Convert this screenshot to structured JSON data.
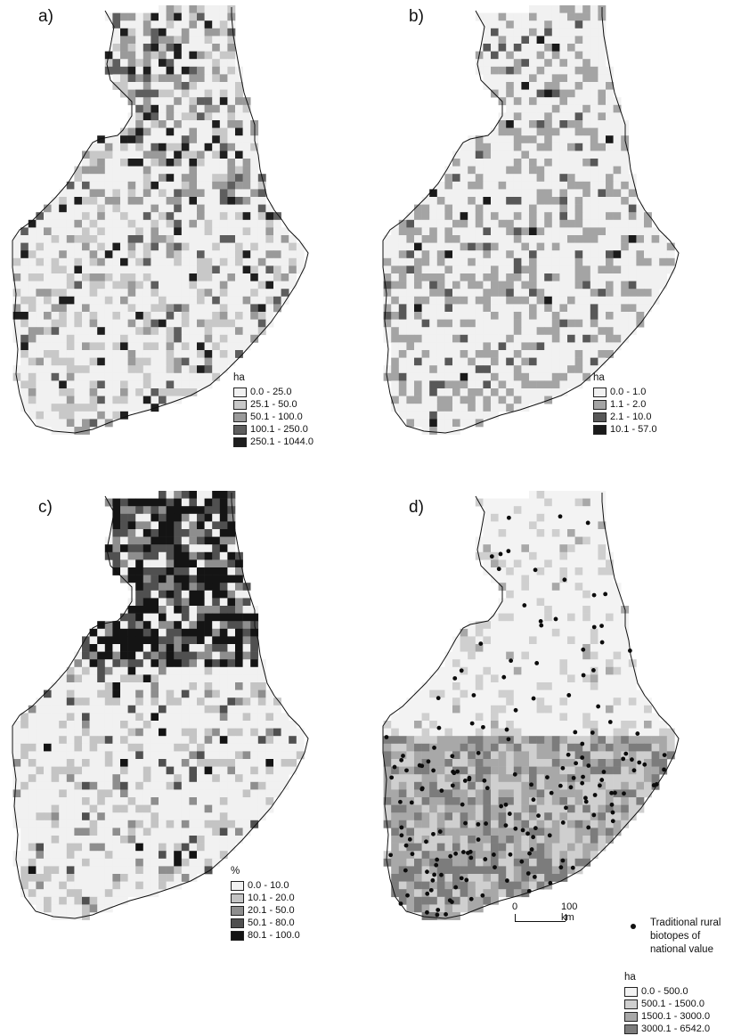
{
  "panels": [
    {
      "label": "a)",
      "legend": {
        "title": "ha",
        "classes": [
          {
            "label": "0.0 - 25.0",
            "color": "#f1f1f1"
          },
          {
            "label": "25.1 - 50.0",
            "color": "#c8c8c8"
          },
          {
            "label": "50.1 - 100.0",
            "color": "#9a9a9a"
          },
          {
            "label": "100.1 - 250.0",
            "color": "#5e5e5e"
          },
          {
            "label": "250.1 - 1044.0",
            "color": "#1e1e1e"
          }
        ]
      }
    },
    {
      "label": "b)",
      "legend": {
        "title": "ha",
        "classes": [
          {
            "label": "0.0 - 1.0",
            "color": "#f1f1f1"
          },
          {
            "label": "1.1 - 2.0",
            "color": "#a4a4a4"
          },
          {
            "label": "2.1 - 10.0",
            "color": "#585858"
          },
          {
            "label": "10.1 - 57.0",
            "color": "#1a1a1a"
          }
        ]
      }
    },
    {
      "label": "c)",
      "legend": {
        "title": "%",
        "classes": [
          {
            "label": "0.0 - 10.0",
            "color": "#f1f1f1"
          },
          {
            "label": "10.1 - 20.0",
            "color": "#c4c4c4"
          },
          {
            "label": "20.1 - 50.0",
            "color": "#8e8e8e"
          },
          {
            "label": "50.1 - 80.0",
            "color": "#505050"
          },
          {
            "label": "80.1 - 100.0",
            "color": "#141414"
          }
        ]
      }
    },
    {
      "label": "d)",
      "legend": {
        "title": "ha",
        "classes": [
          {
            "label": "0.0 - 500.0",
            "color": "#f3f3f3"
          },
          {
            "label": "500.1 - 1500.0",
            "color": "#cfcfcf"
          },
          {
            "label": "1500.1 - 3000.0",
            "color": "#a8a8a8"
          },
          {
            "label": "3000.1 - 6542.0",
            "color": "#7c7c7c"
          }
        ]
      },
      "point_legend": "Traditional rural\nbiotopes of\nnational value",
      "scalebar": {
        "start": "0",
        "end": "100 km"
      }
    }
  ]
}
